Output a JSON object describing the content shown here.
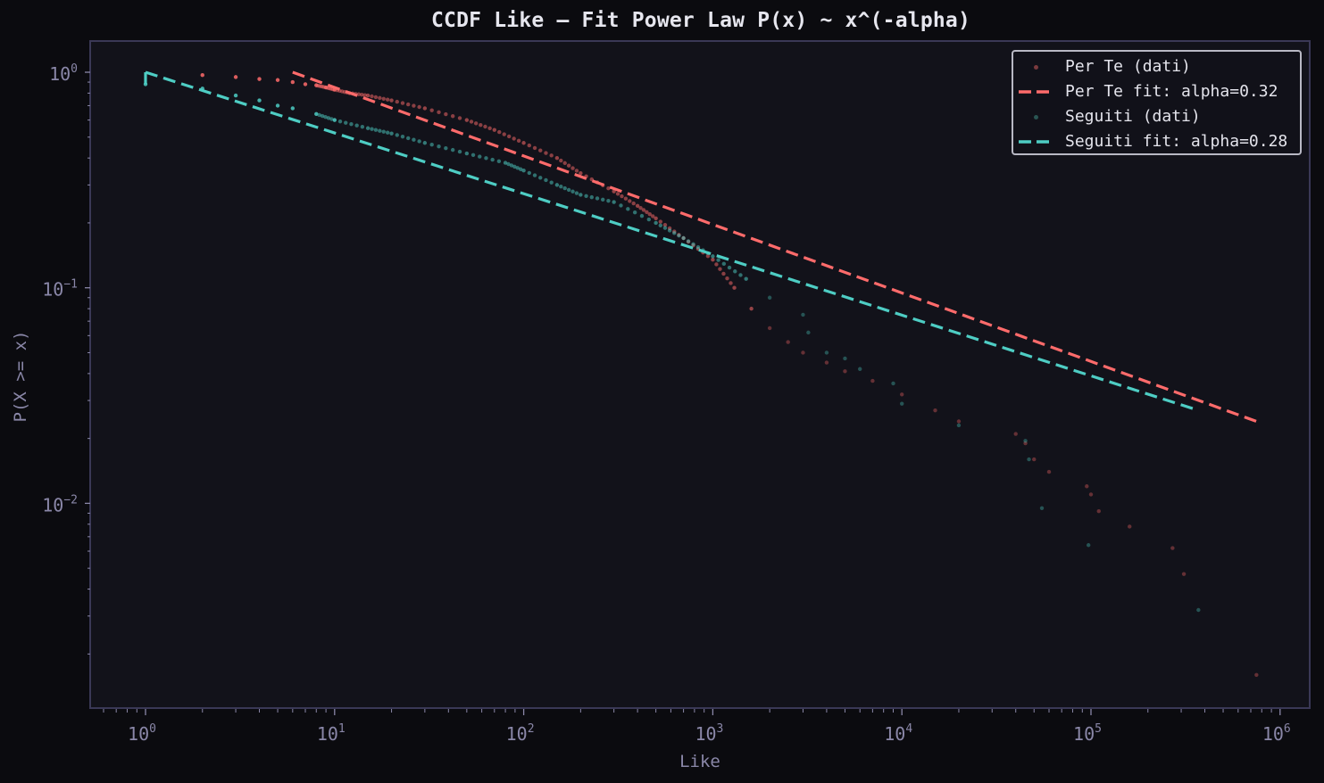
{
  "chart_data": {
    "type": "scatter",
    "title": "CCDF Like — Fit Power Law P(x) ~ x^(-alpha)",
    "xlabel": "Like",
    "ylabel": "P(X >= x)",
    "xscale": "log",
    "yscale": "log",
    "xlim": [
      0.51,
      1430000
    ],
    "ylim": [
      0.00112,
      1.4
    ],
    "xticks": [
      "10^0",
      "10^1",
      "10^2",
      "10^3",
      "10^4",
      "10^5",
      "10^6"
    ],
    "yticks": [
      "10^0",
      "10^-1",
      "10^-2"
    ],
    "grid": false,
    "legend_position": "upper right",
    "series": [
      {
        "name": "Per Te (dati)",
        "kind": "scatter",
        "color": "#ff6b6b",
        "x": [
          2,
          3,
          4,
          5,
          6,
          7,
          8,
          9,
          10,
          12,
          15,
          20,
          30,
          50,
          70,
          100,
          150,
          200,
          300,
          400,
          500,
          700,
          1000,
          1300,
          1600,
          2000,
          2500,
          3000,
          4000,
          5000,
          7000,
          10000,
          15000,
          20000,
          40000,
          45000,
          50000,
          60000,
          95000,
          100000,
          110000,
          160000,
          270000,
          310000,
          750000
        ],
        "y": [
          0.97,
          0.95,
          0.93,
          0.92,
          0.9,
          0.88,
          0.87,
          0.85,
          0.83,
          0.8,
          0.78,
          0.74,
          0.68,
          0.6,
          0.54,
          0.47,
          0.4,
          0.34,
          0.28,
          0.24,
          0.21,
          0.17,
          0.135,
          0.1,
          0.08,
          0.065,
          0.056,
          0.05,
          0.045,
          0.041,
          0.037,
          0.032,
          0.027,
          0.024,
          0.021,
          0.019,
          0.016,
          0.014,
          0.012,
          0.011,
          0.0092,
          0.0078,
          0.0062,
          0.0047,
          0.0016
        ]
      },
      {
        "name": "Per Te fit: alpha=0.32",
        "kind": "line",
        "style": "dashed",
        "color": "#ff6b6b",
        "alpha": 0.32,
        "x": [
          6,
          750000
        ],
        "y": [
          1.0,
          0.024
        ]
      },
      {
        "name": "Seguiti (dati)",
        "kind": "scatter",
        "color": "#4ecdc4",
        "x": [
          1,
          2,
          3,
          4,
          5,
          6,
          8,
          10,
          15,
          20,
          30,
          50,
          80,
          100,
          150,
          200,
          300,
          500,
          700,
          1000,
          1500,
          2000,
          3000,
          3200,
          4000,
          5000,
          6000,
          9000,
          10000,
          20000,
          45000,
          47000,
          55000,
          97000,
          370000
        ],
        "y": [
          0.88,
          0.84,
          0.78,
          0.74,
          0.7,
          0.68,
          0.64,
          0.6,
          0.55,
          0.52,
          0.47,
          0.42,
          0.38,
          0.35,
          0.3,
          0.27,
          0.25,
          0.2,
          0.17,
          0.14,
          0.11,
          0.09,
          0.075,
          0.062,
          0.05,
          0.047,
          0.042,
          0.036,
          0.029,
          0.023,
          0.0195,
          0.016,
          0.0095,
          0.0064,
          0.0032
        ]
      },
      {
        "name": "Seguiti fit: alpha=0.28",
        "kind": "line",
        "style": "dashed",
        "color": "#4ecdc4",
        "alpha": 0.28,
        "x": [
          1,
          370000
        ],
        "y": [
          1.0,
          0.027
        ]
      }
    ]
  },
  "title": "CCDF Like — Fit Power Law P(x) ~ x^(-alpha)",
  "axes": {
    "xlabel": "Like",
    "ylabel": "P(X >= x)",
    "xticks": [
      {
        "base": "10",
        "exp": "0"
      },
      {
        "base": "10",
        "exp": "1"
      },
      {
        "base": "10",
        "exp": "2"
      },
      {
        "base": "10",
        "exp": "3"
      },
      {
        "base": "10",
        "exp": "4"
      },
      {
        "base": "10",
        "exp": "5"
      },
      {
        "base": "10",
        "exp": "6"
      }
    ],
    "yticks": [
      {
        "base": "10",
        "exp": "0"
      },
      {
        "base": "10",
        "exp": "−1"
      },
      {
        "base": "10",
        "exp": "−2"
      }
    ]
  },
  "legend": {
    "items": [
      {
        "label": "Per Te (dati)",
        "type": "dot",
        "color": "#7a3a3e"
      },
      {
        "label": "Per Te fit: alpha=0.32",
        "type": "dash",
        "color": "#ff6b6b"
      },
      {
        "label": "Seguiti (dati)",
        "type": "dot",
        "color": "#2a5553"
      },
      {
        "label": "Seguiti fit: alpha=0.28",
        "type": "dash",
        "color": "#4ecdc4"
      }
    ]
  },
  "colors": {
    "background": "#0b0b0f",
    "plot_background": "#12121a",
    "frame": "#3a3856",
    "text": "#8a87a8",
    "title": "#e6e6ee",
    "per_te": "#ff6b6b",
    "seguiti": "#4ecdc4"
  }
}
